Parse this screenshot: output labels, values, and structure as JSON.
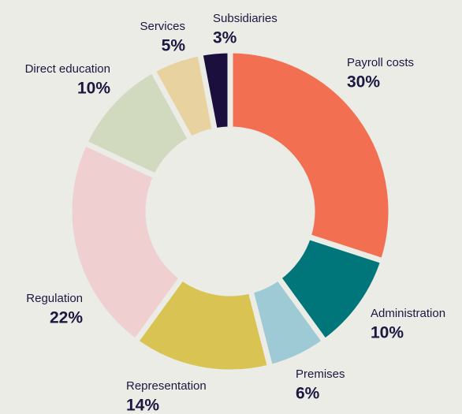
{
  "chart_data": {
    "type": "donut",
    "categories": [
      "Payroll costs",
      "Administration",
      "Premises",
      "Representation",
      "Regulation",
      "Direct education",
      "Services",
      "Subsidiaries"
    ],
    "values": [
      30,
      10,
      6,
      14,
      22,
      10,
      5,
      3
    ],
    "value_labels": [
      "30%",
      "10%",
      "6%",
      "14%",
      "22%",
      "10%",
      "5%",
      "3%"
    ],
    "colors": [
      "#f26f52",
      "#00767a",
      "#9ecad6",
      "#d9c352",
      "#f0cfd0",
      "#d1d9bf",
      "#e8d2a0",
      "#1a0f3d"
    ]
  }
}
